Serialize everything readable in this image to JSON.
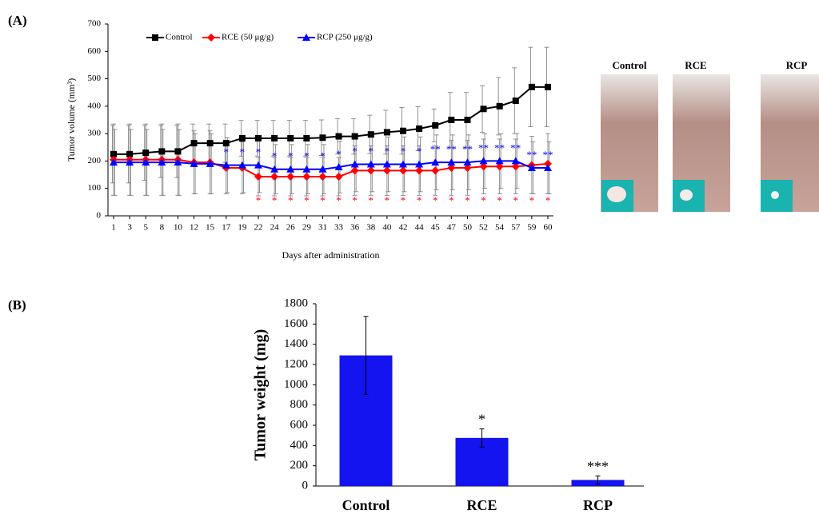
{
  "panel_labels": [
    "(A)",
    "(B)"
  ],
  "photos": {
    "labels": [
      "Control",
      "RCE",
      "RCP"
    ]
  },
  "chart_data": [
    {
      "type": "line",
      "x_label": "Days after administration",
      "y_label": "Tumor volume (mm³)",
      "categories": [
        "1",
        "3",
        "5",
        "8",
        "10",
        "12",
        "15",
        "17",
        "19",
        "22",
        "24",
        "26",
        "29",
        "31",
        "33",
        "36",
        "38",
        "40",
        "42",
        "44",
        "45",
        "47",
        "50",
        "52",
        "54",
        "57",
        "59",
        "60"
      ],
      "ylim": [
        0,
        700
      ],
      "yticks": [
        0,
        100,
        200,
        300,
        400,
        500,
        600,
        700
      ],
      "grid": false,
      "legend": "top-left",
      "series": [
        {
          "name": "Control",
          "color": "#000000",
          "marker": "square",
          "values": [
            225,
            225,
            230,
            235,
            235,
            265,
            265,
            265,
            283,
            283,
            283,
            283,
            283,
            285,
            290,
            290,
            297,
            305,
            310,
            318,
            330,
            350,
            350,
            390,
            400,
            420,
            470,
            470
          ],
          "errors": [
            105,
            105,
            100,
            95,
            95,
            70,
            70,
            70,
            65,
            65,
            65,
            65,
            65,
            65,
            65,
            65,
            70,
            80,
            85,
            80,
            60,
            100,
            100,
            85,
            105,
            120,
            145,
            145
          ]
        },
        {
          "name": "RCE  (50 μg/g)",
          "color": "#ff0000",
          "marker": "diamond",
          "values": [
            205,
            205,
            205,
            205,
            205,
            195,
            195,
            175,
            175,
            143,
            143,
            143,
            143,
            143,
            143,
            165,
            165,
            165,
            165,
            165,
            165,
            175,
            175,
            180,
            180,
            180,
            185,
            190
          ],
          "errors": [
            130,
            130,
            130,
            130,
            130,
            115,
            115,
            95,
            95,
            70,
            70,
            70,
            70,
            70,
            70,
            90,
            90,
            90,
            90,
            90,
            90,
            100,
            100,
            100,
            100,
            100,
            105,
            110
          ],
          "significance": [
            null,
            null,
            null,
            null,
            null,
            null,
            null,
            null,
            null,
            "*",
            "*",
            "*",
            "*",
            "*",
            "*",
            "*",
            "*",
            "*",
            "*",
            "*",
            "*",
            "*",
            "*",
            "*",
            "*",
            "*",
            "*",
            "*"
          ]
        },
        {
          "name": "RCP (250 μg/g)",
          "color": "#0000ff",
          "marker": "triangle",
          "values": [
            195,
            195,
            195,
            195,
            195,
            190,
            190,
            185,
            185,
            185,
            170,
            170,
            170,
            170,
            178,
            188,
            188,
            188,
            188,
            188,
            195,
            195,
            195,
            200,
            200,
            200,
            175,
            175
          ],
          "errors": [
            120,
            120,
            120,
            120,
            120,
            110,
            110,
            100,
            100,
            100,
            90,
            90,
            90,
            90,
            95,
            100,
            100,
            100,
            100,
            100,
            100,
            100,
            100,
            100,
            100,
            100,
            95,
            95
          ],
          "significance": [
            null,
            null,
            null,
            null,
            null,
            null,
            null,
            "*",
            "*",
            "*",
            "*",
            "*",
            "*",
            "*",
            "*",
            "*",
            "*",
            "*",
            "*",
            "*",
            "**",
            "**",
            "**",
            "**",
            "**",
            "**",
            "**",
            "**"
          ]
        }
      ]
    },
    {
      "type": "bar",
      "y_label": "Tumor weight (mg)",
      "categories": [
        "Control",
        "RCE",
        "RCP"
      ],
      "values": [
        1290,
        475,
        60
      ],
      "errors": [
        385,
        90,
        40
      ],
      "significance": [
        null,
        "*",
        "***"
      ],
      "color": "#1414f0",
      "ylim": [
        0,
        1800
      ],
      "yticks": [
        0,
        200,
        400,
        600,
        800,
        1000,
        1200,
        1400,
        1600,
        1800
      ],
      "grid": false
    }
  ]
}
